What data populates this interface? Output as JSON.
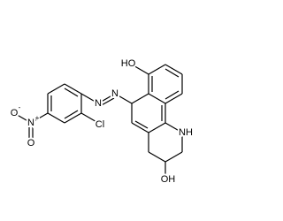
{
  "atoms": [
    {
      "label": "HO"
    },
    {
      "label": "N"
    },
    {
      "label": "N"
    },
    {
      "label": "Cl"
    },
    {
      "label": "N"
    },
    {
      "label": "+"
    },
    {
      "label": "O"
    },
    {
      "label": "-"
    },
    {
      "label": "O"
    },
    {
      "label": "NH"
    },
    {
      "label": "OH"
    }
  ]
}
